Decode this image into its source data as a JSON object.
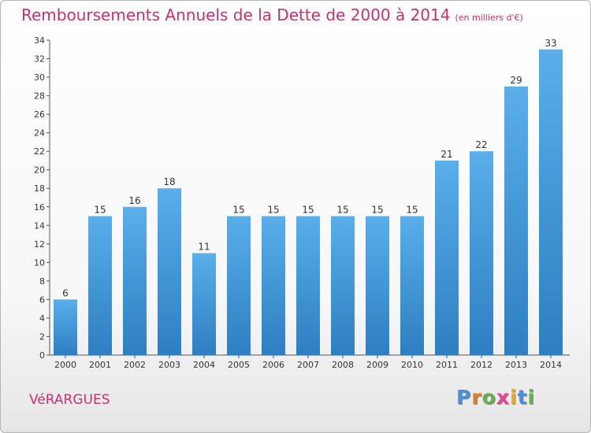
{
  "title": "Remboursements Annuels de la Dette de 2000 à 2014",
  "unit": "(en milliers d'€)",
  "town": "VéRARGUES",
  "logo": {
    "letters": [
      "P",
      "r",
      "o",
      "x",
      "i",
      "t",
      "i"
    ],
    "colors": [
      "#4a90d9",
      "#e07b28",
      "#6ab04c",
      "#e84393",
      "#f5a623",
      "#4a90d9",
      "#6ab04c"
    ]
  },
  "colors": {
    "bar": "#4a9fe0",
    "title": "#c8306e"
  },
  "chart_data": {
    "type": "bar",
    "title": "Remboursements Annuels de la Dette de 2000 à 2014",
    "categories": [
      "2000",
      "2001",
      "2002",
      "2003",
      "2004",
      "2005",
      "2006",
      "2007",
      "2008",
      "2009",
      "2010",
      "2011",
      "2012",
      "2013",
      "2014"
    ],
    "values": [
      6,
      15,
      16,
      18,
      11,
      15,
      15,
      15,
      15,
      15,
      15,
      21,
      22,
      29,
      33
    ],
    "ylim": [
      0,
      34
    ],
    "yticks": [
      0,
      2,
      4,
      6,
      8,
      10,
      12,
      14,
      16,
      18,
      20,
      22,
      24,
      26,
      28,
      30,
      32,
      34
    ],
    "grid": false
  }
}
